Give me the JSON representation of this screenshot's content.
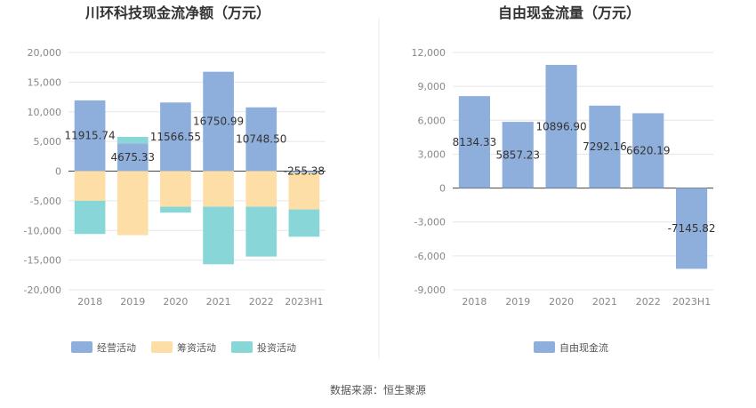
{
  "source": "数据来源：恒生聚源",
  "chart_data": [
    {
      "type": "bar",
      "stacked": true,
      "title": "川环科技现金流净额（万元）",
      "categories": [
        "2018",
        "2019",
        "2020",
        "2021",
        "2022",
        "2023H1"
      ],
      "ylim": [
        -20000,
        20000
      ],
      "yticks": [
        -20000,
        -15000,
        -10000,
        -5000,
        0,
        5000,
        10000,
        15000,
        20000
      ],
      "ytick_labels": [
        "-20,000",
        "-15,000",
        "-10,000",
        "-5,000",
        "0",
        "5,000",
        "10,000",
        "15,000",
        "20,000"
      ],
      "grid": true,
      "legend": "bottom",
      "series": [
        {
          "name": "经营活动",
          "color": "#8eaedb",
          "values": [
            11915.74,
            4675.33,
            11566.55,
            16750.99,
            10748.5,
            -255.38
          ]
        },
        {
          "name": "筹资活动",
          "color": "#fddea6",
          "values": [
            -5000,
            -10800,
            -6000,
            -6000,
            -6000,
            -6200
          ]
        },
        {
          "name": "投资活动",
          "color": "#88d6d8",
          "values": [
            -5600,
            1100,
            -1000,
            -9700,
            -8400,
            -4600
          ]
        }
      ],
      "data_labels": [
        "11915.74",
        "4675.33",
        "11566.55",
        "16750.99",
        "10748.50",
        "-255.38"
      ]
    },
    {
      "type": "bar",
      "title": "自由现金流量（万元）",
      "categories": [
        "2018",
        "2019",
        "2020",
        "2021",
        "2022",
        "2023H1"
      ],
      "ylim": [
        -9000,
        12000
      ],
      "yticks": [
        -9000,
        -6000,
        -3000,
        0,
        3000,
        6000,
        9000,
        12000
      ],
      "ytick_labels": [
        "-9,000",
        "-6,000",
        "-3,000",
        "0",
        "3,000",
        "6,000",
        "9,000",
        "12,000"
      ],
      "grid": true,
      "legend": "bottom",
      "series": [
        {
          "name": "自由现金流",
          "color": "#8eaedb",
          "values": [
            8134.33,
            5857.23,
            10896.9,
            7292.16,
            6620.19,
            -7145.82
          ]
        }
      ],
      "data_labels": [
        "8134.33",
        "5857.23",
        "10896.90",
        "7292.16",
        "6620.19",
        "-7145.82"
      ]
    }
  ]
}
